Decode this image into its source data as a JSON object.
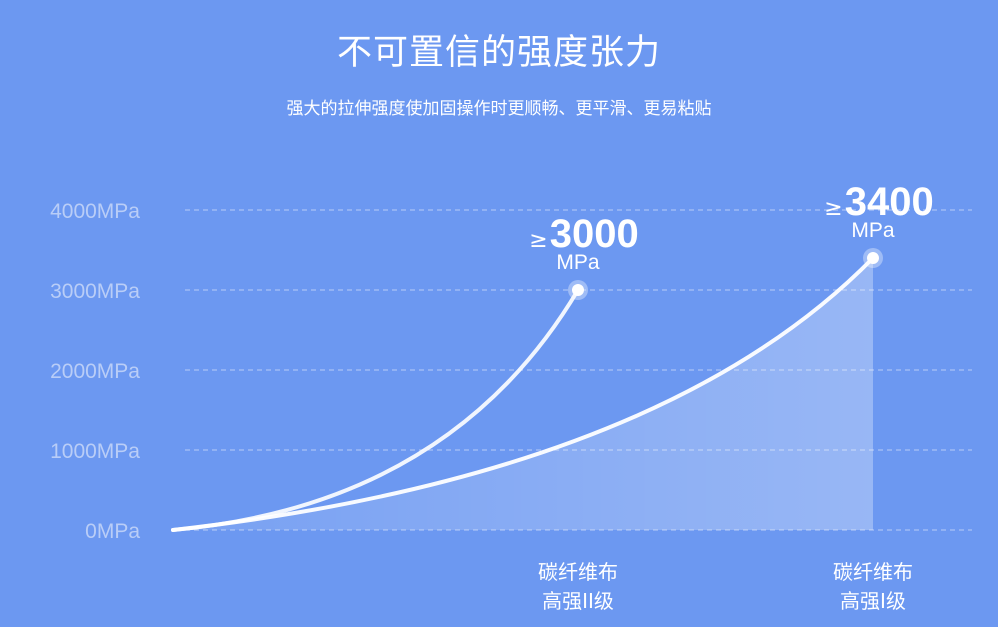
{
  "header": {
    "title": "不可置信的强度张力",
    "subtitle": "强大的拉伸强度使加固操作时更顺畅、更平滑、更易粘贴"
  },
  "colors": {
    "background": "#6c98f1",
    "line": "#ffffff",
    "grid": "#a9c2f5"
  },
  "chart_data": {
    "type": "line",
    "title": "",
    "xlabel": "",
    "ylabel": "",
    "ylim": [
      0,
      4000
    ],
    "yticks": [
      "0MPa",
      "1000MPa",
      "2000MPa",
      "3000MPa",
      "4000MPa"
    ],
    "grid": true,
    "categories": [
      "碳纤维布\n高强II级",
      "碳纤维布\n高强I级"
    ],
    "series": [
      {
        "category_line1": "碳纤维布",
        "category_line2": "高强II级",
        "value": 3000,
        "label_prefix": "≥",
        "label_value": "3000",
        "label_unit": "MPa",
        "filled": false
      },
      {
        "category_line1": "碳纤维布",
        "category_line2": "高强I级",
        "value": 3400,
        "label_prefix": "≥",
        "label_value": "3400",
        "label_unit": "MPa",
        "filled": true
      }
    ]
  }
}
